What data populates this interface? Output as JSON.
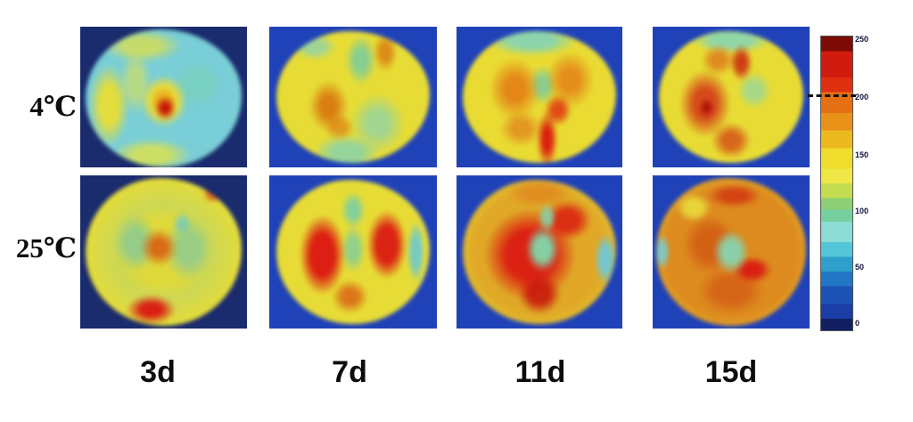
{
  "figure": {
    "rows": [
      {
        "label": "4℃"
      },
      {
        "label": "25℃"
      }
    ],
    "columns": [
      "3d",
      "7d",
      "11d",
      "15d"
    ]
  },
  "colorbar": {
    "range": [
      0,
      250
    ],
    "dashed_marker_value": 200,
    "colormap": "jet",
    "ticks": [
      {
        "value": 250,
        "label": "250"
      },
      {
        "value": 200,
        "label": "200"
      },
      {
        "value": 150,
        "label": "150"
      },
      {
        "value": 100,
        "label": "100"
      },
      {
        "value": 50,
        "label": "50"
      },
      {
        "value": 0,
        "label": "0"
      }
    ]
  },
  "chart_data": {
    "type": "heatmap",
    "layout": "2x4 grid of pseudo-color (jet colormap) images with shared colorbar",
    "row_labels": [
      "4℃",
      "25℃"
    ],
    "column_labels": [
      "3d",
      "7d",
      "11d",
      "15d"
    ],
    "colorbar": {
      "min": 0,
      "max": 250,
      "ticks": [
        0,
        50,
        100,
        150,
        200,
        250
      ],
      "dashed_line_at": 200,
      "colormap": "jet",
      "position": "right"
    },
    "panels": [
      {
        "row": "4℃",
        "column": "3d",
        "approx_mean": 115,
        "description": "mostly cyan interior (~100) with yellow mottled ring (~150) and small red-orange core (~230) on dark navy background"
      },
      {
        "row": "4℃",
        "column": "7d",
        "approx_mean": 150,
        "description": "yellow body (~150) with green patches (~120) and orange blobs (~190)"
      },
      {
        "row": "4℃",
        "column": "11d",
        "approx_mean": 165,
        "description": "yellow-orange lobes (~180) with green-cyan rim, green centre and red streak at bottom centre (~230)"
      },
      {
        "row": "4℃",
        "column": "15d",
        "approx_mean": 175,
        "description": "yellow body with large red-orange mass on left (~220), red block near top and green rim"
      },
      {
        "row": "25℃",
        "column": "3d",
        "approx_mean": 145,
        "description": "yellow-green mottled rings with orange core (~200) and red patch at bottom (~230)"
      },
      {
        "row": "25℃",
        "column": "7d",
        "approx_mean": 180,
        "description": "two large red lobes (~230) left and right separated by green-yellow column, cyan rim"
      },
      {
        "row": "25℃",
        "column": "11d",
        "approx_mean": 200,
        "description": "predominantly red (~235) with central green patch (~120) and cyan right rim"
      },
      {
        "row": "25℃",
        "column": "15d",
        "approx_mean": 195,
        "description": "orange-red disc (~210) with central green-cyan blob (~115) and yellow rim"
      }
    ]
  },
  "colors": {
    "background": "#ffffff",
    "panel_bg_dark": "#1a2b6e",
    "panel_bg_blue": "#2042b8",
    "label_color": "#0d0d0d"
  }
}
